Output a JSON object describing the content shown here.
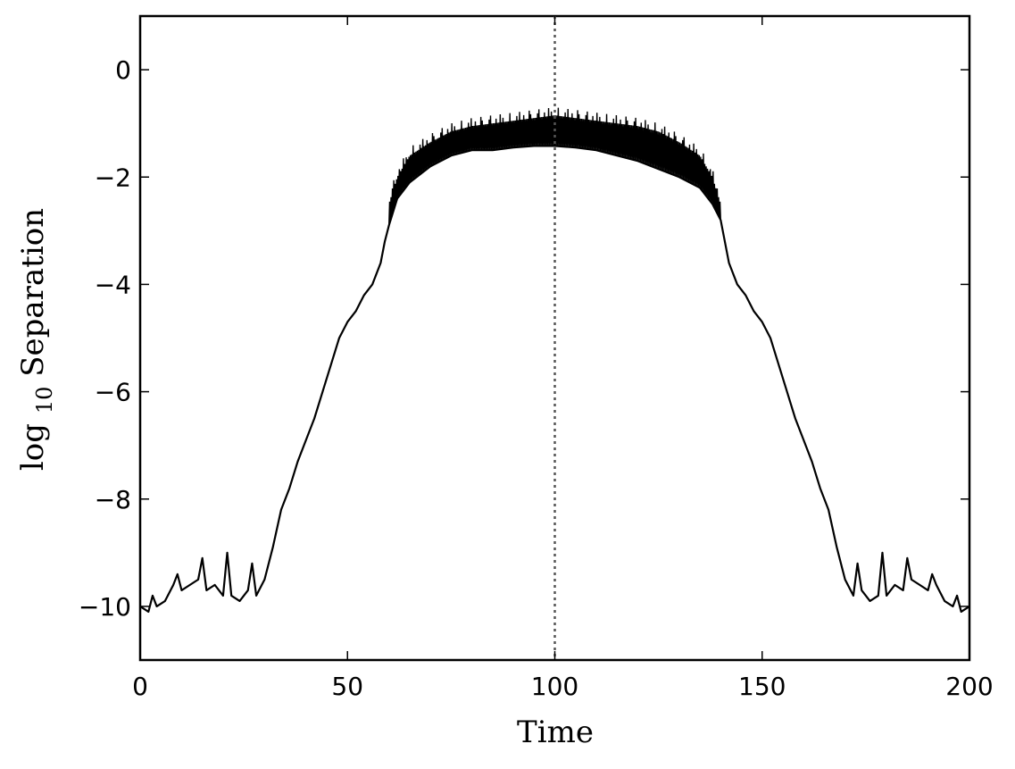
{
  "chart_data": {
    "type": "line",
    "title": "",
    "xlabel": "Time",
    "ylabel": {
      "prefix": "log",
      "subscript": "10",
      "suffix": " Separation"
    },
    "xlim": [
      0,
      200
    ],
    "ylim": [
      -11,
      1
    ],
    "xticks": [
      0,
      50,
      100,
      150,
      200
    ],
    "yticks": [
      0,
      -2,
      -4,
      -6,
      -8,
      -10
    ],
    "xtick_labels": [
      "0",
      "50",
      "100",
      "150",
      "200"
    ],
    "ytick_labels": [
      "0",
      "−2",
      "−4",
      "−6",
      "−8",
      "−10"
    ],
    "grid": false,
    "legend": "none",
    "reference_line": {
      "x": 100,
      "style": "dotted",
      "color": "#555555"
    },
    "series": [
      {
        "color": "#000000",
        "x": [
          0,
          2,
          3,
          4,
          6,
          8,
          9,
          10,
          12,
          14,
          15,
          16,
          18,
          20,
          21,
          22,
          24,
          26,
          27,
          28,
          30,
          32,
          34,
          36,
          38,
          40,
          42,
          44,
          46,
          48,
          50,
          52,
          54,
          56,
          58,
          59,
          60,
          62,
          65,
          70,
          75,
          80,
          85,
          90,
          95,
          100,
          105,
          110,
          115,
          120,
          125,
          130,
          135,
          138,
          140,
          141,
          142,
          144,
          146,
          148,
          150,
          152,
          154,
          156,
          158,
          160,
          162,
          164,
          166,
          168,
          170,
          172,
          173,
          174,
          176,
          178,
          179,
          180,
          182,
          184,
          185,
          186,
          188,
          190,
          191,
          192,
          194,
          196,
          197,
          198,
          200
        ],
        "y": [
          -10.0,
          -10.1,
          -9.8,
          -10.0,
          -9.9,
          -9.6,
          -9.4,
          -9.7,
          -9.6,
          -9.5,
          -9.1,
          -9.7,
          -9.6,
          -9.8,
          -9.0,
          -9.8,
          -9.9,
          -9.7,
          -9.2,
          -9.8,
          -9.5,
          -8.9,
          -8.2,
          -7.8,
          -7.3,
          -6.9,
          -6.5,
          -6.0,
          -5.5,
          -5.0,
          -4.7,
          -4.5,
          -4.2,
          -4.0,
          -3.6,
          -3.2,
          -2.9,
          -2.4,
          -2.1,
          -1.8,
          -1.6,
          -1.5,
          -1.5,
          -1.45,
          -1.42,
          -1.42,
          -1.45,
          -1.5,
          -1.6,
          -1.7,
          -1.85,
          -2.0,
          -2.2,
          -2.5,
          -2.8,
          -3.2,
          -3.6,
          -4.0,
          -4.2,
          -4.5,
          -4.7,
          -5.0,
          -5.5,
          -6.0,
          -6.5,
          -6.9,
          -7.3,
          -7.8,
          -8.2,
          -8.9,
          -9.5,
          -9.8,
          -9.2,
          -9.7,
          -9.9,
          -9.8,
          -9.0,
          -9.8,
          -9.6,
          -9.7,
          -9.1,
          -9.5,
          -9.6,
          -9.7,
          -9.4,
          -9.6,
          -9.9,
          -10.0,
          -9.8,
          -10.1,
          -10.0
        ]
      }
    ],
    "oscillation_band": {
      "x_range": [
        60,
        140
      ],
      "upper_envelope": {
        "x": [
          60,
          62,
          65,
          70,
          75,
          80,
          85,
          90,
          95,
          100,
          105,
          110,
          115,
          120,
          125,
          130,
          135,
          138,
          140
        ],
        "y": [
          -2.5,
          -2.0,
          -1.6,
          -1.35,
          -1.15,
          -1.05,
          -1.0,
          -0.95,
          -0.9,
          -0.85,
          -0.9,
          -0.95,
          -1.0,
          -1.05,
          -1.15,
          -1.35,
          -1.6,
          -2.0,
          -2.5
        ]
      }
    }
  }
}
